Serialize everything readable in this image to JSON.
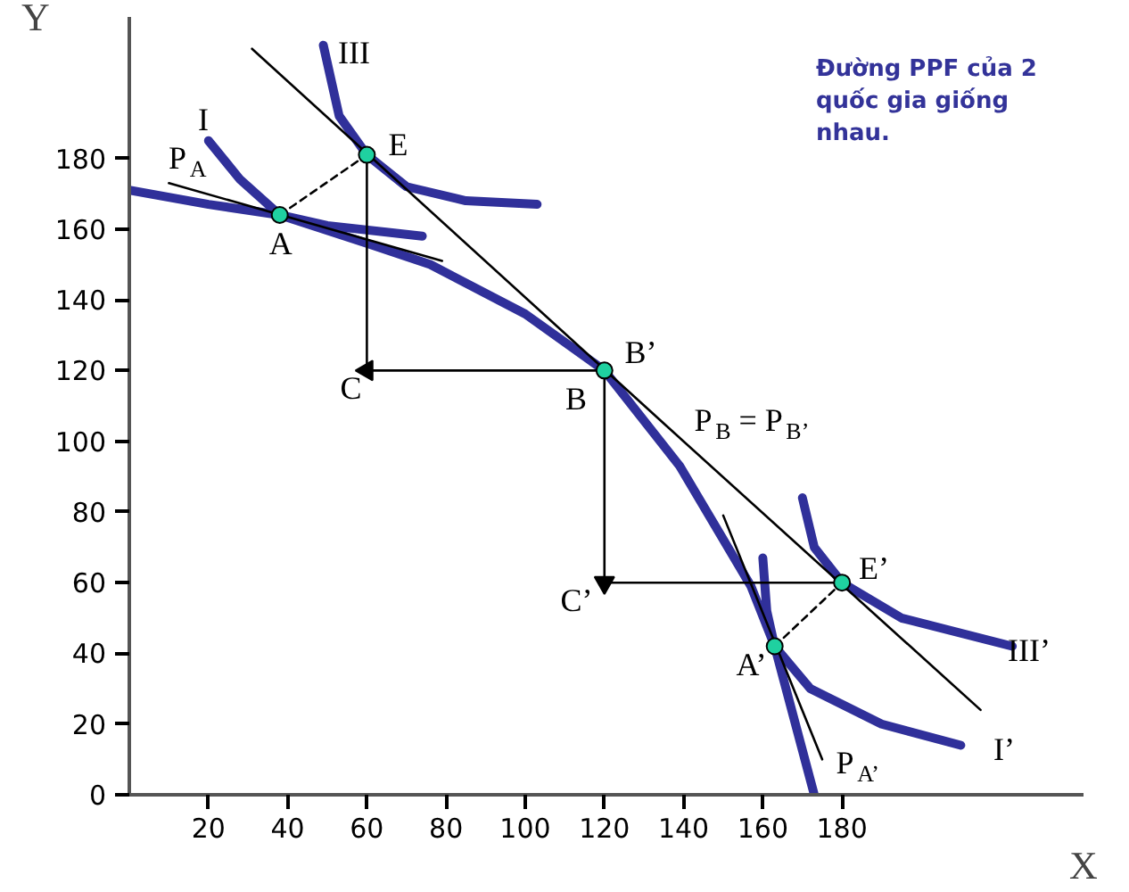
{
  "chart_data": {
    "type": "line",
    "title": "Đường PPF của 2 quốc gia giống nhau.",
    "xlabel": "X",
    "ylabel": "Y",
    "xlim": [
      0,
      241
    ],
    "ylim": [
      0,
      220
    ],
    "xticks": [
      20,
      40,
      60,
      80,
      100,
      120,
      140,
      160,
      180
    ],
    "yticks": [
      0,
      20,
      40,
      60,
      80,
      100,
      120,
      140,
      160,
      180
    ],
    "grid": false,
    "series": [
      {
        "color": "#30309a",
        "x": [
          0,
          20,
          38,
          60,
          76,
          100,
          120,
          139,
          157,
          163,
          173
        ],
        "values": [
          171,
          167,
          164,
          156,
          150,
          136,
          120,
          93,
          59,
          42,
          0
        ]
      },
      {
        "color": "#30309a",
        "x": [
          20,
          28,
          38,
          50,
          74
        ],
        "values": [
          185,
          174,
          164,
          161,
          158
        ]
      },
      {
        "color": "#30309a",
        "x": [
          49,
          53,
          60,
          70,
          85,
          103
        ],
        "values": [
          212,
          192,
          181,
          172,
          168,
          167
        ]
      },
      {
        "color": "#30309a",
        "x": [
          170,
          173,
          180,
          195,
          223
        ],
        "values": [
          84,
          70,
          60,
          50,
          42
        ]
      },
      {
        "color": "#30309a",
        "x": [
          160,
          161,
          163,
          172,
          190,
          210
        ],
        "values": [
          67,
          52,
          42,
          30,
          20,
          14
        ]
      },
      {
        "color": "#000000",
        "x": [
          10,
          79
        ],
        "values": [
          173,
          151
        ]
      },
      {
        "color": "#000000",
        "x": [
          31,
          135,
          215
        ],
        "values": [
          211,
          105,
          24
        ]
      },
      {
        "color": "#000000",
        "x": [
          150,
          175
        ],
        "values": [
          79,
          10
        ]
      },
      {
        "color": "#000000",
        "line_style": "dashed",
        "x": [
          38,
          60
        ],
        "values": [
          164,
          181
        ]
      },
      {
        "color": "#000000",
        "x": [
          60,
          60
        ],
        "values": [
          181,
          120
        ]
      },
      {
        "color": "#000000",
        "x": [
          120,
          60
        ],
        "values": [
          120,
          120
        ]
      },
      {
        "color": "#000000",
        "x": [
          120,
          120
        ],
        "values": [
          120,
          60
        ]
      },
      {
        "color": "#000000",
        "x": [
          120,
          180
        ],
        "values": [
          60,
          60
        ]
      },
      {
        "color": "#000000",
        "line_style": "dashed",
        "x": [
          163,
          180
        ],
        "values": [
          42,
          60
        ]
      },
      {
        "type": "scatter",
        "marker": "triangle",
        "color": "#000000",
        "x": [
          60,
          120
        ],
        "values": [
          120,
          60
        ]
      },
      {
        "type": "scatter",
        "marker": "circle",
        "color": "#1fd1a0",
        "x": [
          38,
          60,
          120,
          180,
          163
        ],
        "values": [
          164,
          181,
          120,
          60,
          42
        ]
      }
    ],
    "annotations": [
      {
        "text": "I",
        "x": 20,
        "y": 185
      },
      {
        "text": "III",
        "x": 49,
        "y": 212
      },
      {
        "text": "E",
        "x": 60,
        "y": 181
      },
      {
        "text": "P$_{A}$",
        "x": 10,
        "y": 173
      },
      {
        "text": "A",
        "x": 38,
        "y": 164
      },
      {
        "text": "C",
        "x": 60,
        "y": 120
      },
      {
        "text": "B’",
        "x": 120,
        "y": 120
      },
      {
        "text": "B",
        "x": 120,
        "y": 120
      },
      {
        "text": "P$_{B}$ = P$_{B’}$",
        "x": 135,
        "y": 105
      },
      {
        "text": "C’",
        "x": 120,
        "y": 60
      },
      {
        "text": "E’",
        "x": 180,
        "y": 60
      },
      {
        "text": "A’",
        "x": 163,
        "y": 42
      },
      {
        "text": "III’",
        "x": 223,
        "y": 42
      },
      {
        "text": "I’",
        "x": 210,
        "y": 14
      },
      {
        "text": "P$_{A’}$",
        "x": 175,
        "y": 10
      }
    ]
  }
}
